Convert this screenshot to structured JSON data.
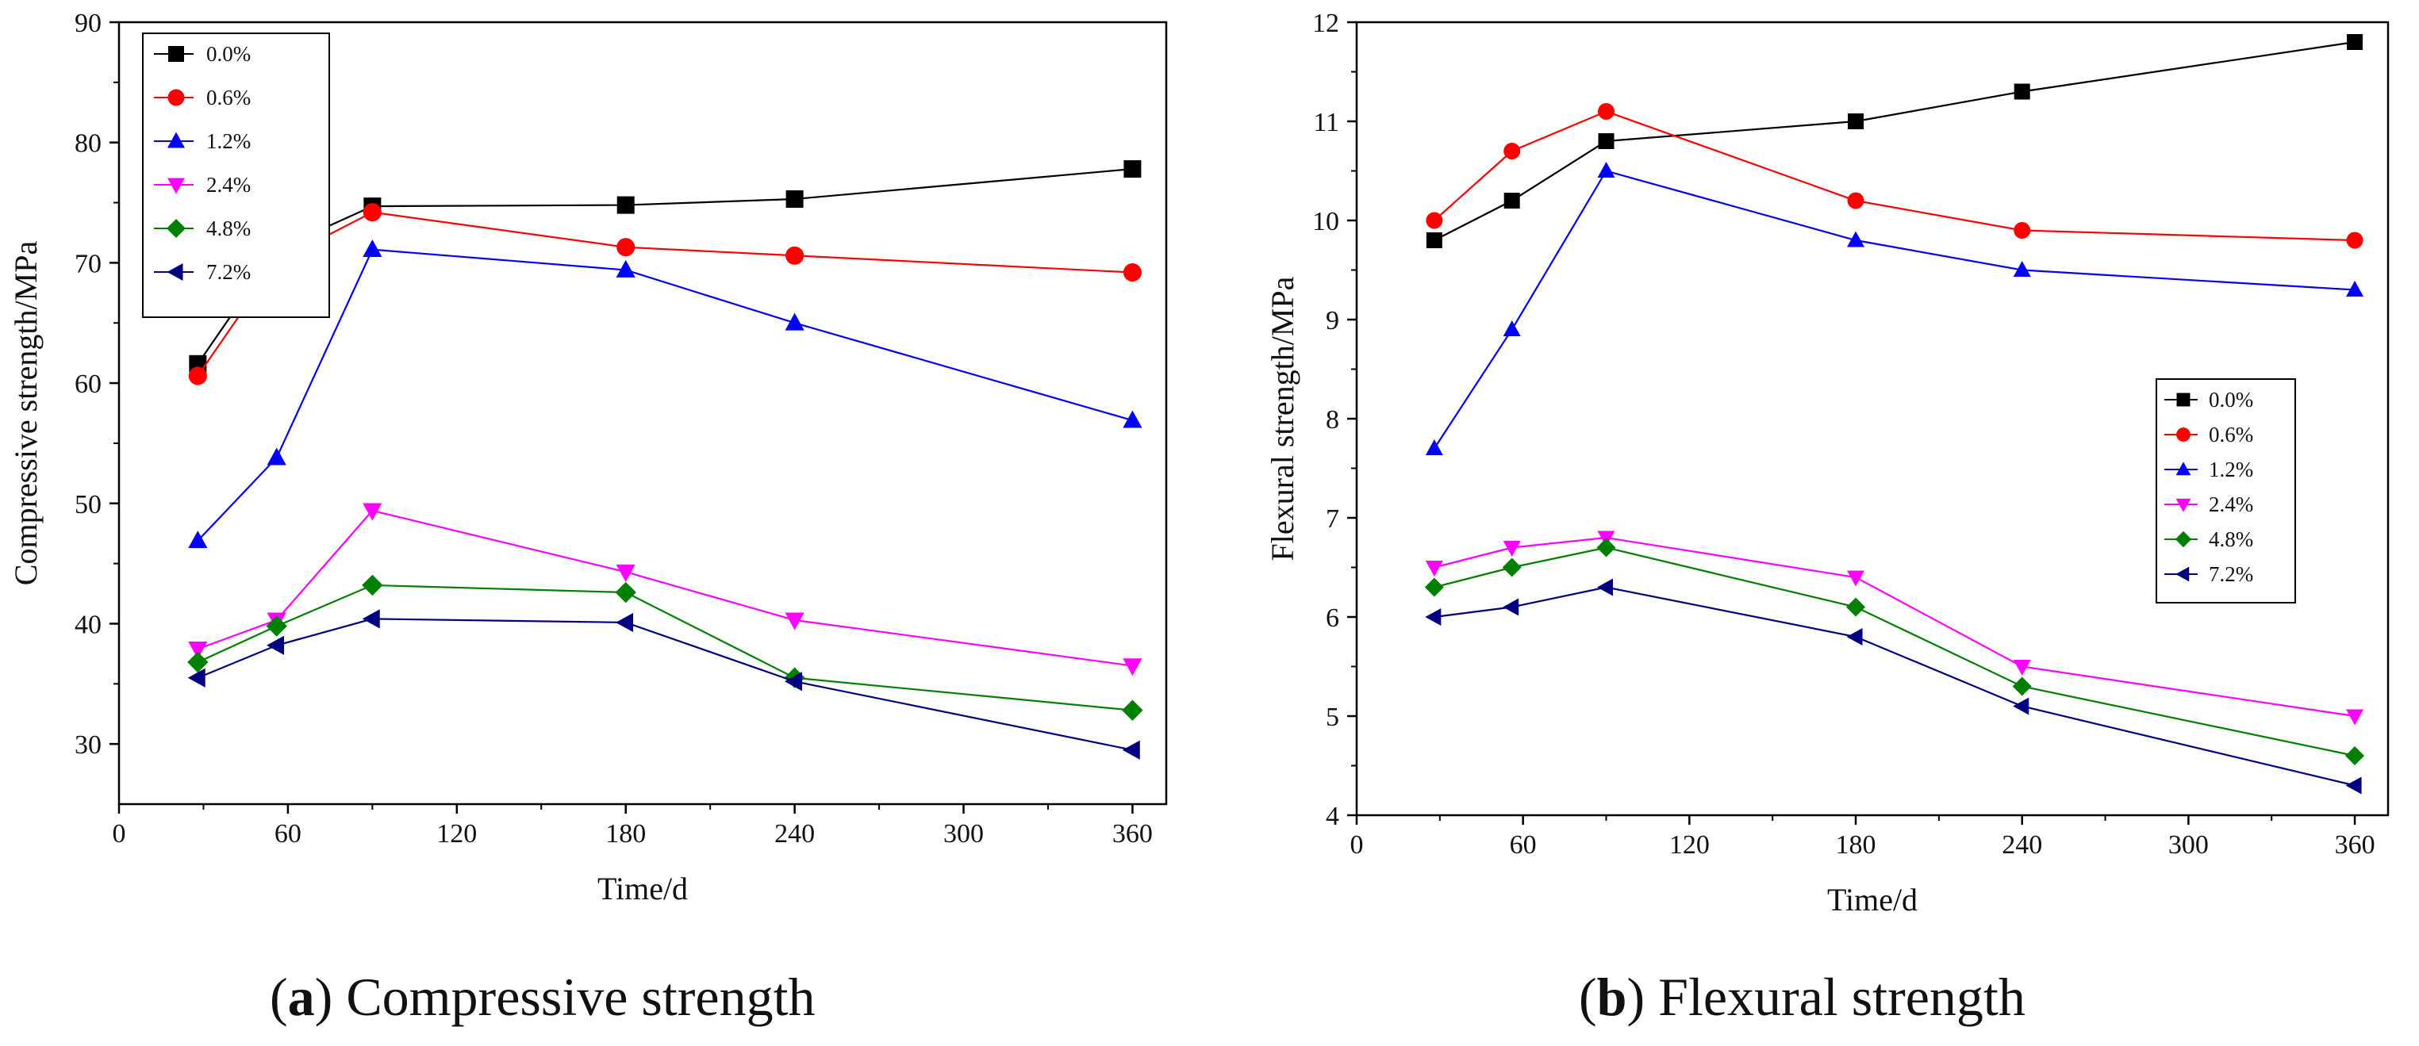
{
  "chart_data": [
    {
      "type": "line",
      "title": "",
      "xlabel": "Time/d",
      "ylabel": "Compressive strength/MPa",
      "xlim": [
        0,
        372
      ],
      "ylim": [
        25,
        90
      ],
      "xticks": [
        0,
        60,
        120,
        180,
        240,
        300,
        360
      ],
      "yticks": [
        30,
        40,
        50,
        60,
        70,
        80,
        90
      ],
      "grid": false,
      "legend_position": "top-left",
      "caption": {
        "tag": "a",
        "text": "Compressive strength"
      },
      "x": [
        28,
        56,
        90,
        180,
        240,
        360
      ],
      "series": [
        {
          "name": "0.0%",
          "color": "#000000",
          "marker": "square",
          "values": [
            61.6,
            71.1,
            74.7,
            74.8,
            75.3,
            77.8
          ]
        },
        {
          "name": "0.6%",
          "color": "#ff0000",
          "marker": "circle",
          "values": [
            60.6,
            70.1,
            74.2,
            71.3,
            70.6,
            69.2
          ]
        },
        {
          "name": "1.2%",
          "color": "#0000ff",
          "marker": "triangle-up",
          "values": [
            46.9,
            53.8,
            71.1,
            69.4,
            65.0,
            56.9
          ]
        },
        {
          "name": "2.4%",
          "color": "#ff00ff",
          "marker": "triangle-down",
          "values": [
            37.9,
            40.3,
            49.4,
            44.3,
            40.3,
            36.5
          ]
        },
        {
          "name": "4.8%",
          "color": "#008000",
          "marker": "diamond",
          "values": [
            36.8,
            39.8,
            43.2,
            42.6,
            35.5,
            32.8
          ]
        },
        {
          "name": "7.2%",
          "color": "#000080",
          "marker": "triangle-left",
          "values": [
            35.5,
            38.2,
            40.4,
            40.1,
            35.2,
            29.5
          ]
        }
      ]
    },
    {
      "type": "line",
      "title": "",
      "xlabel": "Time/d",
      "ylabel": "Flexural strength/MPa",
      "xlim": [
        0,
        372
      ],
      "ylim": [
        4,
        12
      ],
      "xticks": [
        0,
        60,
        120,
        180,
        240,
        300,
        360
      ],
      "yticks": [
        4,
        5,
        6,
        7,
        8,
        9,
        10,
        11,
        12
      ],
      "grid": false,
      "legend_position": "center-right",
      "caption": {
        "tag": "b",
        "text": "Flexural strength"
      },
      "x": [
        28,
        56,
        90,
        180,
        240,
        360
      ],
      "series": [
        {
          "name": "0.0%",
          "color": "#000000",
          "marker": "square",
          "values": [
            9.8,
            10.2,
            10.8,
            11.0,
            11.3,
            11.8
          ]
        },
        {
          "name": "0.6%",
          "color": "#ff0000",
          "marker": "circle",
          "values": [
            10.0,
            10.7,
            11.1,
            10.2,
            9.9,
            9.8
          ]
        },
        {
          "name": "1.2%",
          "color": "#0000ff",
          "marker": "triangle-up",
          "values": [
            7.7,
            8.9,
            10.5,
            9.8,
            9.5,
            9.3
          ]
        },
        {
          "name": "2.4%",
          "color": "#ff00ff",
          "marker": "triangle-down",
          "values": [
            6.5,
            6.7,
            6.8,
            6.4,
            5.5,
            5.0
          ]
        },
        {
          "name": "4.8%",
          "color": "#008000",
          "marker": "diamond",
          "values": [
            6.3,
            6.5,
            6.7,
            6.1,
            5.3,
            4.6
          ]
        },
        {
          "name": "7.2%",
          "color": "#000080",
          "marker": "triangle-left",
          "values": [
            6.0,
            6.1,
            6.3,
            5.8,
            5.1,
            4.3
          ]
        }
      ]
    }
  ]
}
